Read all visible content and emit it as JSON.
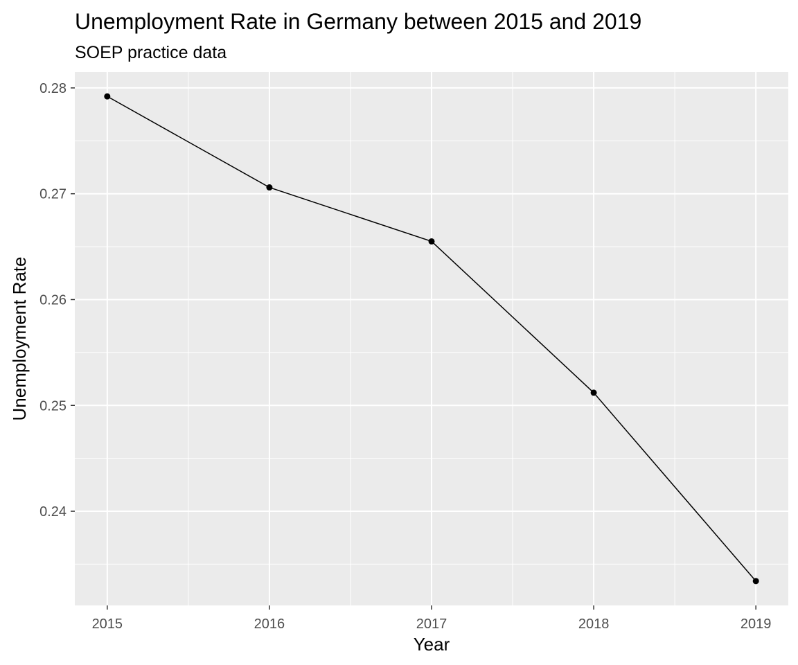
{
  "chart_data": {
    "type": "line",
    "title": "Unemployment Rate in Germany between 2015 and 2019",
    "subtitle": "SOEP practice data",
    "xlabel": "Year",
    "ylabel": "Unemployment Rate",
    "x": [
      2015,
      2016,
      2017,
      2018,
      2019
    ],
    "series": [
      {
        "values": [
          0.2792,
          0.2706,
          0.2655,
          0.2512,
          0.2334
        ]
      }
    ],
    "xlim": [
      2014.8,
      2019.2
    ],
    "ylim": [
      0.2311,
      0.2815
    ],
    "x_ticks": [
      "2015",
      "2016",
      "2017",
      "2018",
      "2019"
    ],
    "y_ticks": [
      "0.24",
      "0.25",
      "0.26",
      "0.27",
      "0.28"
    ],
    "grid": true,
    "panel_background": "#ebebeb",
    "line_color": "#000000",
    "point_color": "#000000"
  }
}
